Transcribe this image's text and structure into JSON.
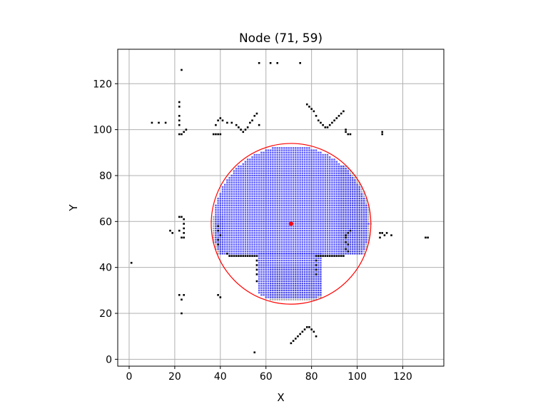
{
  "chart_data": {
    "type": "scatter",
    "title": "Node (71, 59)",
    "xlabel": "X",
    "ylabel": "Y",
    "xlim": [
      -5,
      138
    ],
    "ylim": [
      -3,
      135
    ],
    "xticks": [
      0,
      20,
      40,
      60,
      80,
      100,
      120
    ],
    "yticks": [
      0,
      20,
      40,
      60,
      80,
      100,
      120
    ],
    "grid": true,
    "colors": {
      "obstacle": "#000000",
      "explored": "#a0a0a0",
      "free": "#3333ff",
      "circle": "#ff0000",
      "node": "#ff0000",
      "grid": "#b0b0b0"
    },
    "node": {
      "x": 71,
      "y": 59
    },
    "circle": {
      "cx": 71,
      "cy": 59,
      "r": 35
    },
    "free_cell_spacing": 1,
    "free_regions": [
      {
        "x": [
          38,
          105
        ],
        "y": [
          46,
          92
        ]
      },
      {
        "x": [
          57,
          84
        ],
        "y": [
          27,
          46
        ]
      }
    ],
    "explored_points_spacing": 1,
    "explored_regions": [
      {
        "x": [
          37,
          41
        ],
        "y": [
          46,
          62
        ]
      },
      {
        "x": [
          92,
          106
        ],
        "y": [
          46,
          84
        ]
      },
      {
        "x": [
          62,
          84
        ],
        "y": [
          26,
          40
        ]
      }
    ],
    "obstacles": [
      [
        1,
        42
      ],
      [
        10,
        103
      ],
      [
        13,
        103
      ],
      [
        16,
        103
      ],
      [
        22,
        112
      ],
      [
        22,
        110
      ],
      [
        22,
        106
      ],
      [
        22,
        104
      ],
      [
        22,
        102
      ],
      [
        22,
        98
      ],
      [
        23,
        98
      ],
      [
        24,
        99
      ],
      [
        25,
        100
      ],
      [
        23,
        126
      ],
      [
        22,
        62
      ],
      [
        23,
        62
      ],
      [
        24,
        61
      ],
      [
        24,
        59
      ],
      [
        24,
        57
      ],
      [
        24,
        55
      ],
      [
        23,
        53
      ],
      [
        24,
        53
      ],
      [
        18,
        56
      ],
      [
        19,
        55
      ],
      [
        22,
        56
      ],
      [
        22,
        28
      ],
      [
        24,
        28
      ],
      [
        23,
        26
      ],
      [
        23,
        20
      ],
      [
        37,
        98
      ],
      [
        38,
        98
      ],
      [
        39,
        98
      ],
      [
        40,
        98
      ],
      [
        38,
        102
      ],
      [
        39,
        104
      ],
      [
        40,
        105
      ],
      [
        41,
        104
      ],
      [
        43,
        103
      ],
      [
        45,
        103
      ],
      [
        47,
        102
      ],
      [
        48,
        101
      ],
      [
        49,
        100
      ],
      [
        50,
        99
      ],
      [
        51,
        100
      ],
      [
        52,
        101
      ],
      [
        53,
        103
      ],
      [
        54,
        104
      ],
      [
        55,
        106
      ],
      [
        56,
        107
      ],
      [
        57,
        102
      ],
      [
        39,
        28
      ],
      [
        40,
        27
      ],
      [
        57,
        129
      ],
      [
        62,
        129
      ],
      [
        65,
        129
      ],
      [
        75,
        129
      ],
      [
        78,
        111
      ],
      [
        79,
        110
      ],
      [
        80,
        109
      ],
      [
        81,
        108
      ],
      [
        82,
        106
      ],
      [
        83,
        104
      ],
      [
        84,
        103
      ],
      [
        85,
        102
      ],
      [
        86,
        101
      ],
      [
        87,
        101
      ],
      [
        88,
        102
      ],
      [
        89,
        103
      ],
      [
        90,
        104
      ],
      [
        91,
        105
      ],
      [
        92,
        106
      ],
      [
        93,
        107
      ],
      [
        94,
        108
      ],
      [
        95,
        100
      ],
      [
        95,
        99
      ],
      [
        96,
        98
      ],
      [
        97,
        98
      ],
      [
        111,
        99
      ],
      [
        111,
        98
      ],
      [
        39,
        52
      ],
      [
        39,
        50
      ],
      [
        39,
        56
      ],
      [
        39,
        58
      ],
      [
        40,
        54
      ],
      [
        43,
        46
      ],
      [
        44,
        45
      ],
      [
        45,
        45
      ],
      [
        46,
        45
      ],
      [
        47,
        45
      ],
      [
        48,
        45
      ],
      [
        49,
        45
      ],
      [
        50,
        45
      ],
      [
        51,
        45
      ],
      [
        52,
        45
      ],
      [
        53,
        45
      ],
      [
        54,
        45
      ],
      [
        55,
        45
      ],
      [
        56,
        45
      ],
      [
        56,
        43
      ],
      [
        56,
        41
      ],
      [
        56,
        39
      ],
      [
        56,
        37
      ],
      [
        56,
        34
      ],
      [
        82,
        45
      ],
      [
        82,
        43
      ],
      [
        82,
        41
      ],
      [
        82,
        39
      ],
      [
        82,
        37
      ],
      [
        83,
        45
      ],
      [
        84,
        45
      ],
      [
        85,
        45
      ],
      [
        86,
        45
      ],
      [
        87,
        45
      ],
      [
        88,
        45
      ],
      [
        89,
        45
      ],
      [
        90,
        45
      ],
      [
        91,
        45
      ],
      [
        92,
        45
      ],
      [
        93,
        45
      ],
      [
        94,
        45
      ],
      [
        95,
        54
      ],
      [
        95,
        53
      ],
      [
        96,
        55
      ],
      [
        97,
        56
      ],
      [
        95,
        51
      ],
      [
        96,
        50
      ],
      [
        95,
        48
      ],
      [
        96,
        47
      ],
      [
        110,
        53
      ],
      [
        110,
        55
      ],
      [
        111,
        55
      ],
      [
        112,
        54
      ],
      [
        113,
        55
      ],
      [
        115,
        54
      ],
      [
        130,
        53
      ],
      [
        131,
        53
      ],
      [
        55,
        3
      ],
      [
        71,
        7
      ],
      [
        72,
        8
      ],
      [
        73,
        9
      ],
      [
        74,
        10
      ],
      [
        75,
        11
      ],
      [
        76,
        12
      ],
      [
        77,
        13
      ],
      [
        78,
        14
      ],
      [
        79,
        14
      ],
      [
        80,
        13
      ],
      [
        81,
        12
      ],
      [
        82,
        10
      ]
    ]
  }
}
